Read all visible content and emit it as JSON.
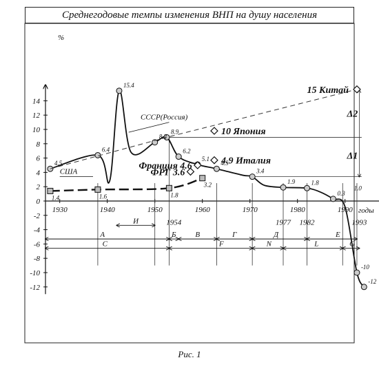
{
  "title": "Среднегодовые темпы изменения ВНП на душу населения",
  "caption": "Рис. 1",
  "chart_data": {
    "type": "line",
    "y_unit": "%",
    "x_unit": "годы",
    "xlim": [
      1927,
      1998
    ],
    "ylim": [
      -13,
      16
    ],
    "x_ticks": [
      1930,
      1940,
      1950,
      1960,
      1970,
      1980,
      1990
    ],
    "y_ticks": [
      14,
      12,
      10,
      8,
      6,
      4,
      2,
      0,
      -2,
      -4,
      -6,
      -8,
      -10,
      -12
    ],
    "extra_x_labels": [
      {
        "text": "1954",
        "x": 1954
      },
      {
        "text": "1977",
        "x": 1977
      },
      {
        "text": "1982",
        "x": 1982
      },
      {
        "text": "1993",
        "x": 1993
      }
    ],
    "series": [
      {
        "name": "СССР(Россия)",
        "points": [
          [
            1928,
            4.5
          ],
          [
            1938,
            6.4
          ],
          [
            1940.5,
            2.8
          ],
          [
            1942.5,
            15.4
          ],
          [
            1945,
            6.8
          ],
          [
            1950,
            8.2
          ],
          [
            1952.5,
            8.9
          ],
          [
            1955,
            6.2
          ],
          [
            1959,
            5.1
          ],
          [
            1963,
            4.5
          ],
          [
            1968.5,
            3.6
          ],
          [
            1970.5,
            3.4
          ],
          [
            1973,
            2.2
          ],
          [
            1977,
            1.9
          ],
          [
            1982,
            1.8
          ],
          [
            1985,
            1.2
          ],
          [
            1987.5,
            0.3
          ],
          [
            1990,
            -0.8
          ],
          [
            1992.5,
            -10
          ],
          [
            1994,
            -12
          ]
        ],
        "labels": [
          {
            "text": "4.5",
            "x": 1928,
            "y": 4.5
          },
          {
            "text": "6.4",
            "x": 1938,
            "y": 6.4
          },
          {
            "text": "15.4",
            "x": 1942.5,
            "y": 15.4
          },
          {
            "text": "8.2",
            "x": 1950,
            "y": 8.2
          },
          {
            "text": "8.9",
            "x": 1952.5,
            "y": 8.9
          },
          {
            "text": "6.2",
            "x": 1955,
            "y": 6.2
          },
          {
            "text": "5.1",
            "x": 1959,
            "y": 5.1
          },
          {
            "text": "4.5",
            "x": 1963,
            "y": 4.5
          },
          {
            "text": "3.4",
            "x": 1970.5,
            "y": 3.4
          },
          {
            "text": "1.9",
            "x": 1977,
            "y": 1.9
          },
          {
            "text": "1.8",
            "x": 1982,
            "y": 1.8
          },
          {
            "text": "0.3",
            "x": 1987.5,
            "y": 0.3
          },
          {
            "text": "1.0",
            "x": 1991,
            "y": 1.0
          },
          {
            "text": "-10",
            "x": 1992.5,
            "y": -10
          },
          {
            "text": "-12",
            "x": 1994,
            "y": -12
          }
        ]
      },
      {
        "name": "США",
        "points": [
          [
            1928,
            1.4
          ],
          [
            1938,
            1.6
          ],
          [
            1953,
            1.8
          ],
          [
            1960,
            3.2
          ]
        ],
        "labels": [
          {
            "text": "1.4",
            "x": 1928,
            "y": 1.4
          },
          {
            "text": "1.6",
            "x": 1938,
            "y": 1.6
          },
          {
            "text": "1.8",
            "x": 1953,
            "y": 1.8
          },
          {
            "text": "3.2",
            "x": 1960,
            "y": 3.2
          }
        ]
      },
      {
        "name": "",
        "style": "dashed",
        "points": [
          [
            1928,
            4.5
          ],
          [
            1952.5,
            8.9
          ],
          [
            1992.5,
            15.6
          ]
        ]
      }
    ],
    "countries": [
      {
        "text": "15 Китай",
        "x": 1992.5,
        "y": 15.6
      },
      {
        "text": "10 Япония",
        "x": 1962.5,
        "y": 9.8
      },
      {
        "text": "4.9 Италия",
        "x": 1962.5,
        "y": 5.7
      },
      {
        "text": "Франция 4.6",
        "x": 1959,
        "y": 5.0
      },
      {
        "text": "ФРГ 3.6",
        "x": 1957.5,
        "y": 4.1
      }
    ],
    "deltas": [
      "Δ2",
      "Δ1"
    ],
    "periods": [
      "А",
      "И",
      "Б",
      "В",
      "Г",
      "Д",
      "Е",
      "С",
      "F",
      "N",
      "L",
      "G"
    ]
  }
}
